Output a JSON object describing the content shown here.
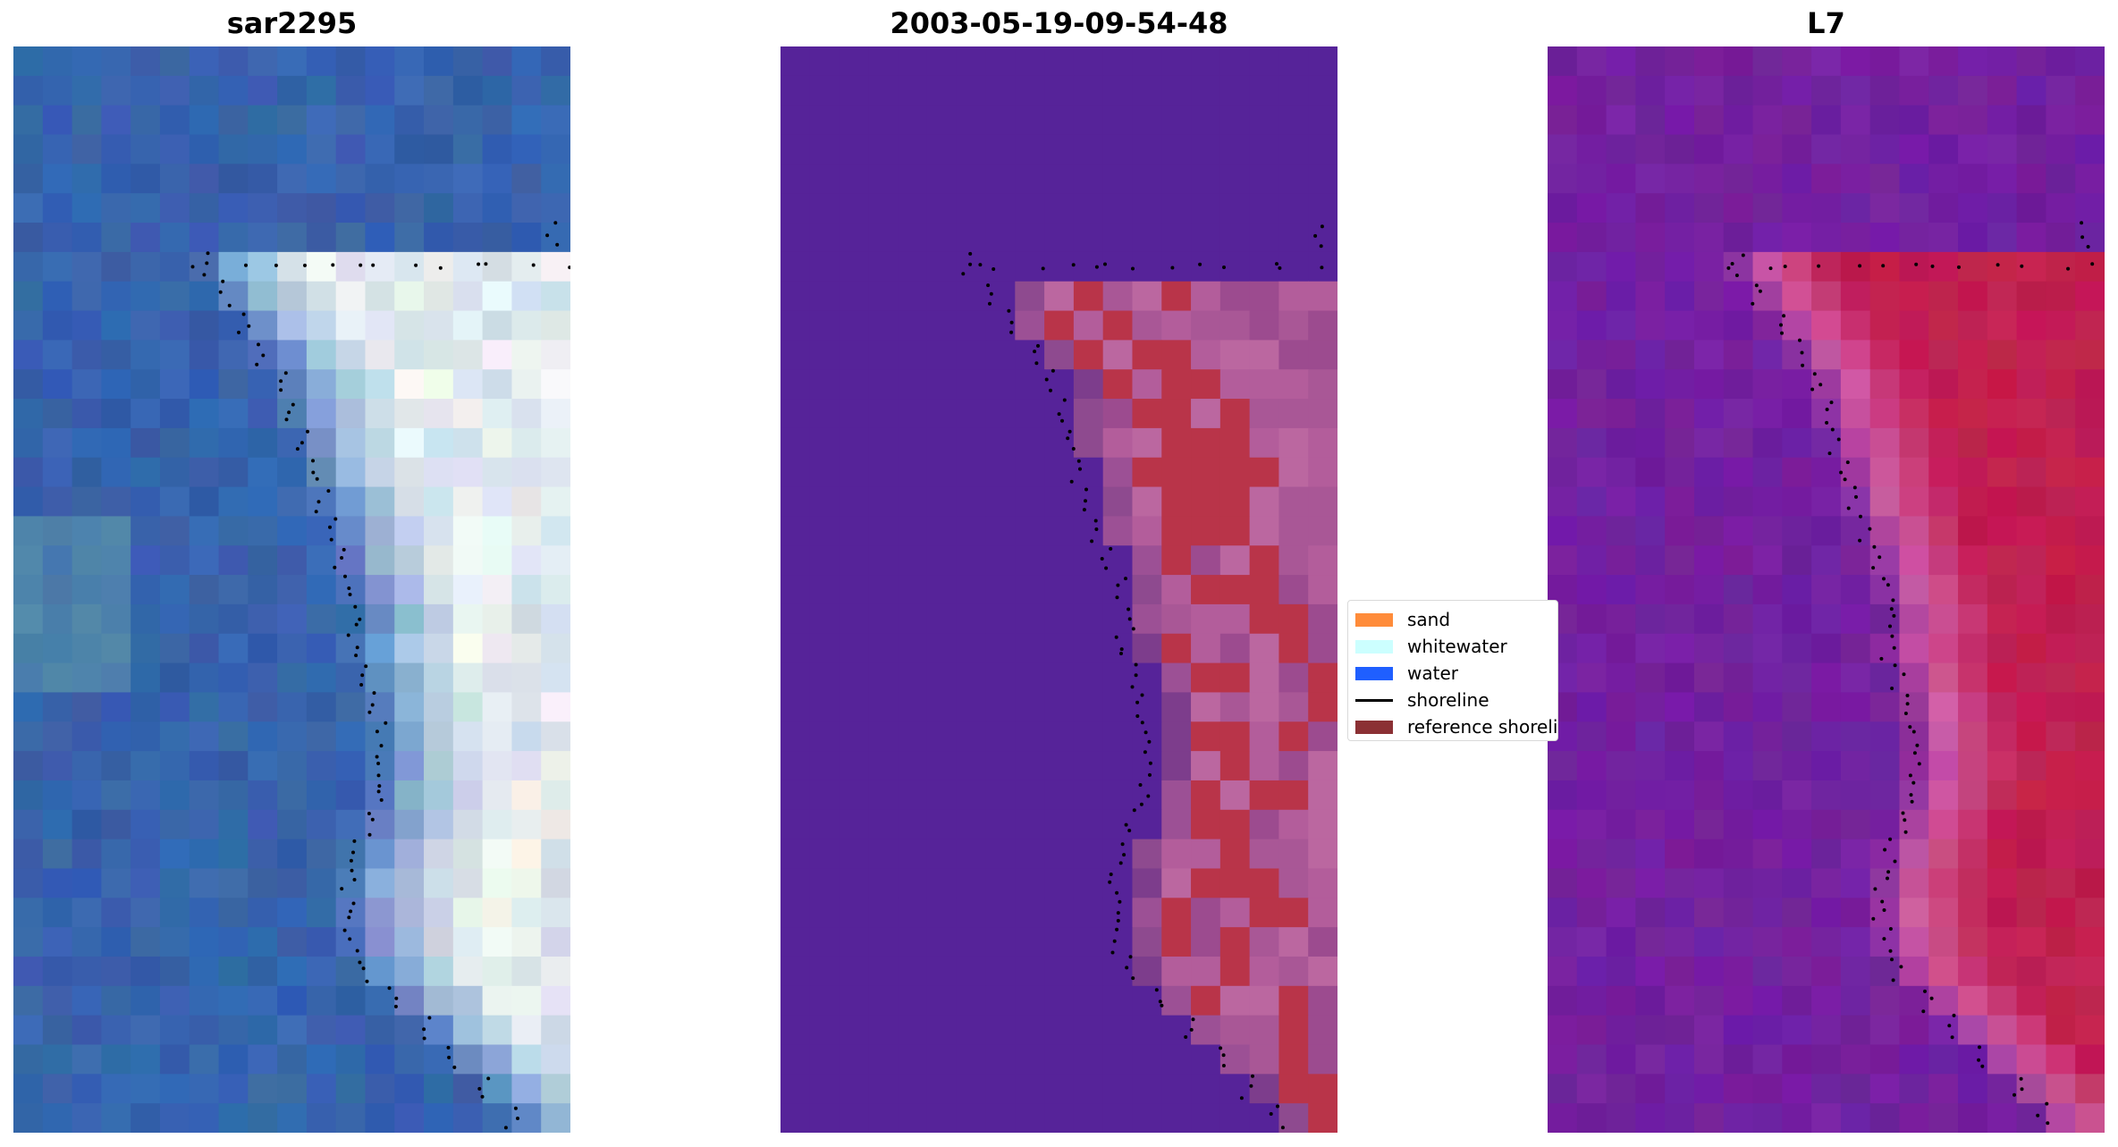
{
  "panels": [
    {
      "title": "sar2295",
      "image": "true-color satellite tile: blue water with bright white surf/whitewater zone along the right side"
    },
    {
      "title": "2003-05-19-09-54-48",
      "image": "classified image: purple water class with red and pink shoreline/sand classes on the right"
    },
    {
      "title": "L7",
      "image": "index map: purple low values on the left, magenta-red high values on the right"
    }
  ],
  "legend": {
    "items": [
      {
        "label": "sand",
        "color": "#ff8c3a",
        "kind": "patch"
      },
      {
        "label": "whitewater",
        "color": "#ccffff",
        "kind": "patch"
      },
      {
        "label": "water",
        "color": "#1f5fff",
        "kind": "patch"
      },
      {
        "label": "shoreline",
        "color": "#000000",
        "kind": "line"
      },
      {
        "label": "reference shoreline",
        "color": "#8b3034",
        "kind": "patch"
      }
    ]
  },
  "colors": {
    "water_blue": "#2d5ca8",
    "class_water_purple": "#562399",
    "class_red": "#b93449",
    "class_pink": "#b35d9b",
    "index_purple": "#6e1a9b",
    "index_red": "#c0103e"
  }
}
